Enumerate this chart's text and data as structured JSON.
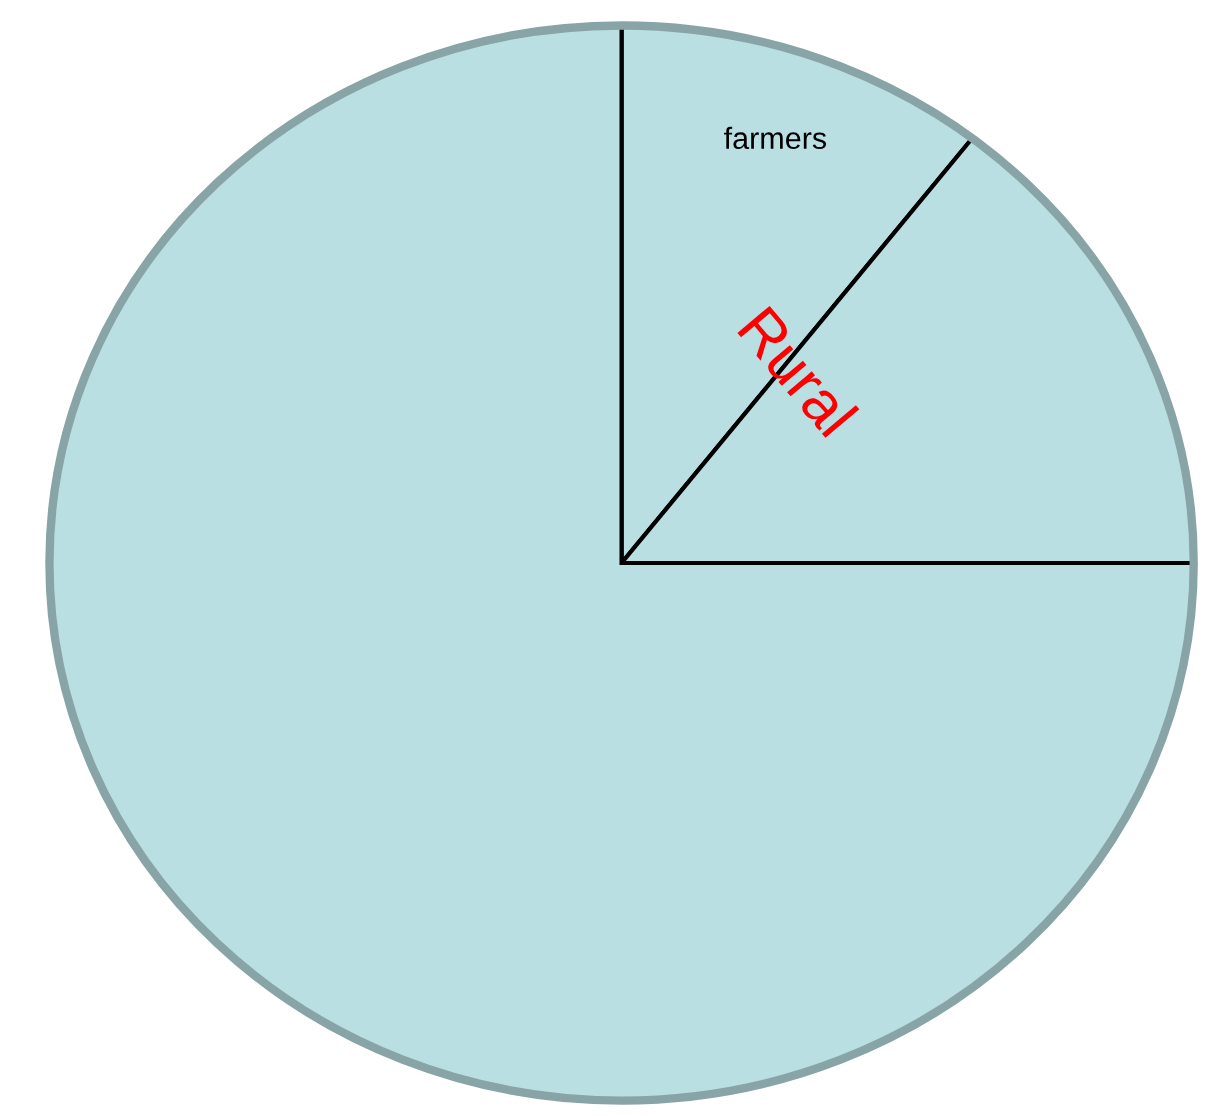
{
  "chart_data": {
    "type": "pie",
    "categories": [
      "farmers",
      null,
      null
    ],
    "values": [
      10.5,
      14.5,
      75
    ],
    "colors": [
      "#b9dfe3",
      "#b9dfe3",
      "#b9dfe3"
    ],
    "annotations": [
      "Rural"
    ]
  }
}
